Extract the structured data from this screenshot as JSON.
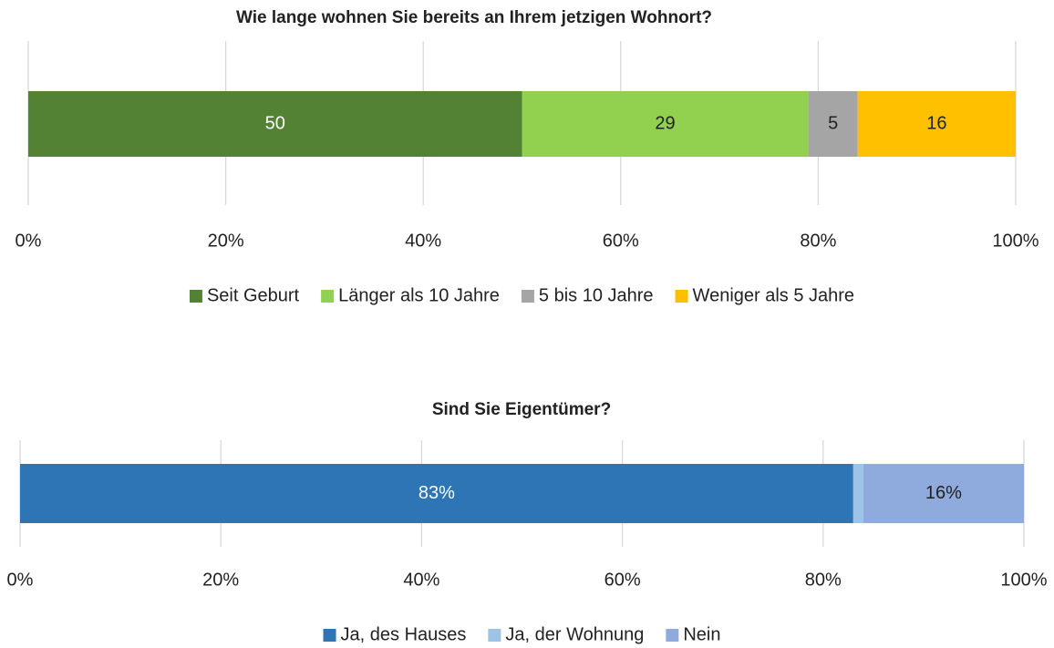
{
  "chart_data": [
    {
      "type": "stacked-bar",
      "title": "Wie lange wohnen Sie bereits an Ihrem jetzigen Wohnort?",
      "series": [
        {
          "name": "Seit Geburt",
          "color": "#548235",
          "values": [
            50
          ]
        },
        {
          "name": "Länger als 10 Jahre",
          "color": "#92d050",
          "values": [
            29
          ]
        },
        {
          "name": "5 bis 10 Jahre",
          "color": "#a5a5a5",
          "values": [
            5
          ]
        },
        {
          "name": "Weniger als 5 Jahre",
          "color": "#ffc000",
          "values": [
            16
          ]
        }
      ],
      "xlim": [
        0,
        100
      ],
      "xticks": [
        {
          "value": 0,
          "label": "0%"
        },
        {
          "value": 20,
          "label": "20%"
        },
        {
          "value": 40,
          "label": "40%"
        },
        {
          "value": 60,
          "label": "60%"
        },
        {
          "value": 80,
          "label": "80%"
        },
        {
          "value": 100,
          "label": "100%"
        }
      ],
      "grid": true,
      "legend": "bottom"
    },
    {
      "type": "stacked-bar",
      "title": "Sind Sie Eigentümer?",
      "series": [
        {
          "name": "Ja, des Hauses",
          "color": "#2e75b6",
          "values": [
            83
          ],
          "value_labels": [
            "83%"
          ]
        },
        {
          "name": "Ja, der Wohnung",
          "color": "#9dc3e6",
          "values": [
            1
          ]
        },
        {
          "name": "Nein",
          "color": "#8faadc",
          "values": [
            16
          ],
          "value_labels": [
            "16%"
          ]
        }
      ],
      "xlim": [
        0,
        100
      ],
      "xticks": [
        {
          "value": 0,
          "label": "0%"
        },
        {
          "value": 20,
          "label": "20%"
        },
        {
          "value": 40,
          "label": "40%"
        },
        {
          "value": 60,
          "label": "60%"
        },
        {
          "value": 80,
          "label": "80%"
        },
        {
          "value": 100,
          "label": "100%"
        }
      ],
      "grid": true,
      "legend": "bottom"
    }
  ]
}
